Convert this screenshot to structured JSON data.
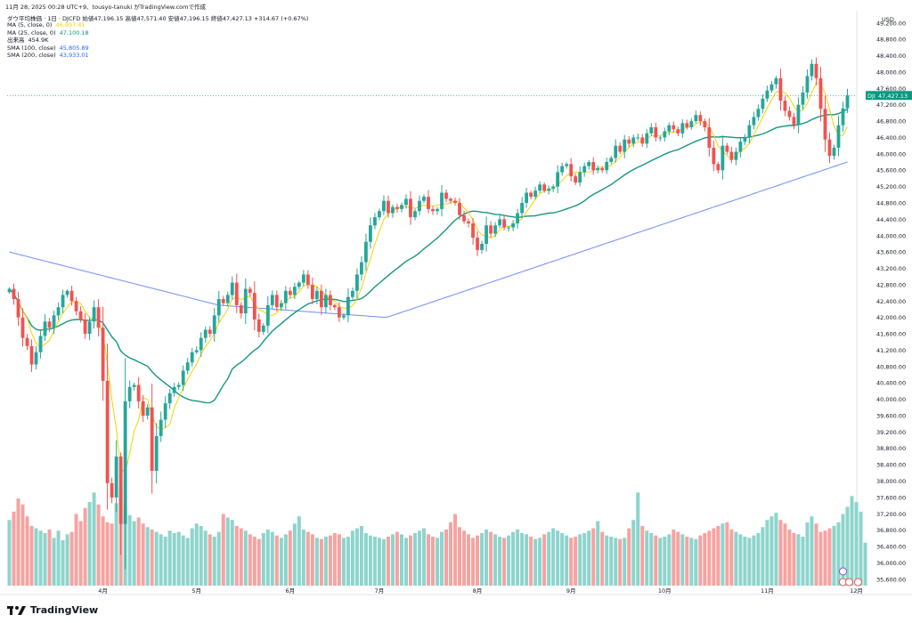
{
  "header": {
    "text": "11月 28, 2025 00:28 UTC+9、tousyo-tanuki がTradingView.comで作成"
  },
  "symbol_line": {
    "name": "ダウ平均株価 · 1日 · DJCFD",
    "open": "始値47,196.15",
    "high": "高値47,571.40",
    "low": "安値47,196.15",
    "close": "終値47,427.13 +314.67 (+0.67%)"
  },
  "legend": [
    {
      "label": "MA (5, close, 0)",
      "value": "46,997.41",
      "color": "#f5d300"
    },
    {
      "label": "MA (25, close, 0)",
      "value": "47,100.18",
      "color": "#089981"
    },
    {
      "label": "出来高",
      "value": "454.9K",
      "color": "#131722"
    },
    {
      "label": "SMA (100, close)",
      "value": "45,805.89",
      "color": "#2962ff"
    },
    {
      "label": "SMA (200, close)",
      "value": "43,933.01",
      "color": "#2962ff"
    }
  ],
  "colors": {
    "up": "#26a69a",
    "down": "#ef5350",
    "vol_up": "#8dd4cc",
    "vol_down": "#f5a3a1",
    "ma5": "#f5d300",
    "ma25": "#14977f",
    "sma100": "#6f8cf5",
    "sma200": "#7a6ff0",
    "price_badge": "#089981"
  },
  "price_badge": {
    "label": "DJI",
    "value": "47,427.13"
  },
  "footer": {
    "brand": "TradingView"
  },
  "chart_data": {
    "type": "candlestick",
    "currency": "USD",
    "y_ticks": [
      "49,200.00",
      "48,800.00",
      "48,400.00",
      "48,000.00",
      "47,600.00",
      "47,200.00",
      "46,800.00",
      "46,400.00",
      "46,000.00",
      "45,600.00",
      "45,200.00",
      "44,800.00",
      "44,400.00",
      "44,000.00",
      "43,600.00",
      "43,200.00",
      "42,800.00",
      "42,400.00",
      "42,000.00",
      "41,600.00",
      "41,200.00",
      "40,800.00",
      "40,400.00",
      "40,000.00",
      "39,600.00",
      "39,200.00",
      "38,800.00",
      "38,400.00",
      "38,000.00",
      "37,600.00",
      "37,200.00",
      "36,800.00",
      "36,400.00",
      "36,000.00",
      "35,600.00"
    ],
    "y_range": [
      35400,
      49500
    ],
    "x_labels": [
      {
        "label": "4月",
        "index": 21
      },
      {
        "label": "5月",
        "index": 42
      },
      {
        "label": "6月",
        "index": 63
      },
      {
        "label": "7月",
        "index": 83
      },
      {
        "label": "8月",
        "index": 105
      },
      {
        "label": "9月",
        "index": 126
      },
      {
        "label": "10月",
        "index": 147
      },
      {
        "label": "11月",
        "index": 170
      },
      {
        "label": "12月",
        "index": 190
      }
    ],
    "closes": [
      42700,
      42450,
      42000,
      41500,
      41300,
      40850,
      41150,
      41550,
      41900,
      41750,
      42050,
      42250,
      42550,
      42650,
      42400,
      42150,
      41950,
      41600,
      41900,
      42250,
      41750,
      40450,
      37950,
      37600,
      38600,
      36950,
      39950,
      40300,
      40350,
      39950,
      39600,
      39800,
      38250,
      39100,
      39500,
      39900,
      40150,
      40300,
      40350,
      40700,
      40900,
      41150,
      41200,
      41500,
      41700,
      41600,
      42050,
      42450,
      42350,
      42550,
      42850,
      42300,
      42100,
      42700,
      42600,
      41950,
      41650,
      41800,
      42300,
      42550,
      42250,
      42350,
      42650,
      42550,
      42750,
      42850,
      43050,
      42800,
      42450,
      42650,
      42250,
      42550,
      42300,
      42250,
      42000,
      42050,
      42500,
      42650,
      43050,
      43350,
      43850,
      44250,
      44450,
      44600,
      44850,
      44550,
      44700,
      44650,
      44750,
      44900,
      44450,
      44600,
      44850,
      44950,
      44650,
      44600,
      44650,
      45050,
      44900,
      44850,
      44800,
      44500,
      44350,
      44300,
      43950,
      43650,
      43800,
      44250,
      44050,
      44250,
      44400,
      44200,
      44200,
      44300,
      44550,
      44800,
      45050,
      44950,
      45100,
      45250,
      45100,
      45150,
      45200,
      45550,
      45700,
      45750,
      45450,
      45300,
      45550,
      45700,
      45800,
      45600,
      45650,
      45600,
      45800,
      45900,
      46200,
      46050,
      46350,
      46250,
      46400,
      46400,
      46250,
      46500,
      46650,
      46400,
      46400,
      46550,
      46700,
      46600,
      46500,
      46750,
      46650,
      46800,
      46950,
      46800,
      46650,
      46150,
      45750,
      45600,
      46200,
      46050,
      45850,
      46050,
      46300,
      46400,
      46700,
      46900,
      47100,
      47350,
      47550,
      47700,
      47850,
      47300,
      47050,
      46900,
      46700,
      47200,
      47500,
      47900,
      48200,
      47850,
      47100,
      46350,
      45950,
      46150,
      46700,
      47112,
      47427
    ],
    "volumes": [
      55,
      62,
      73,
      68,
      58,
      50,
      48,
      46,
      44,
      47,
      40,
      46,
      38,
      43,
      45,
      60,
      54,
      65,
      70,
      78,
      68,
      58,
      53,
      52,
      69,
      82,
      66,
      59,
      54,
      57,
      52,
      49,
      47,
      45,
      43,
      41,
      46,
      44,
      45,
      42,
      40,
      48,
      52,
      50,
      46,
      43,
      41,
      45,
      60,
      57,
      55,
      50,
      48,
      46,
      43,
      41,
      39,
      44,
      47,
      45,
      42,
      40,
      43,
      46,
      52,
      58,
      47,
      45,
      43,
      40,
      39,
      41,
      42,
      44,
      43,
      40,
      41,
      46,
      48,
      50,
      44,
      42,
      41,
      40,
      39,
      41,
      43,
      45,
      43,
      40,
      42,
      44,
      46,
      48,
      43,
      41,
      40,
      45,
      47,
      53,
      60,
      49,
      46,
      43,
      40,
      42,
      44,
      47,
      45,
      43,
      41,
      40,
      42,
      45,
      47,
      44,
      43,
      41,
      39,
      40,
      43,
      45,
      48,
      46,
      44,
      42,
      40,
      41,
      43,
      44,
      46,
      48,
      54,
      45,
      42,
      41,
      40,
      39,
      40,
      48,
      55,
      78,
      50,
      46,
      44,
      42,
      40,
      41,
      43,
      47,
      45,
      43,
      41,
      40,
      39,
      42,
      44,
      46,
      48,
      50,
      52,
      53,
      47,
      45,
      43,
      41,
      40,
      42,
      44,
      49,
      55,
      58,
      61,
      55,
      52,
      47,
      44,
      43,
      41,
      53,
      58,
      52,
      45,
      46,
      48,
      50,
      53,
      60,
      66,
      75,
      70,
      62,
      36
    ]
  }
}
